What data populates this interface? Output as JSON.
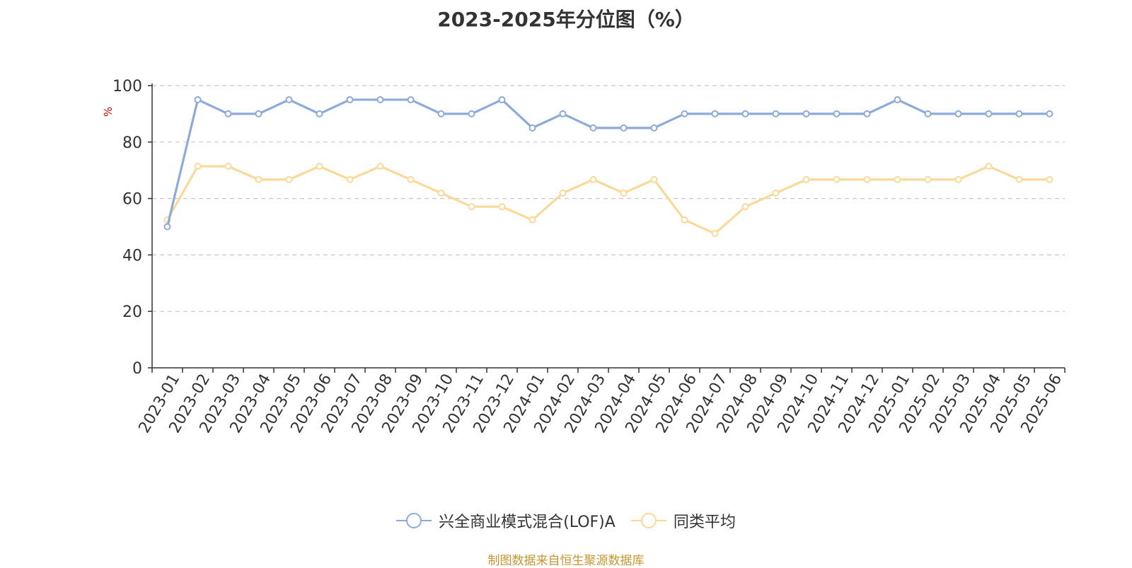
{
  "chart_data": {
    "type": "line",
    "title": "2023-2025年分位图（%）",
    "ylabel": "%",
    "xlabel": "",
    "ylim": [
      0,
      100
    ],
    "yticks": [
      0,
      20,
      40,
      60,
      80,
      100
    ],
    "grid": true,
    "legend_position": "bottom",
    "categories": [
      "2023-01",
      "2023-02",
      "2023-03",
      "2023-04",
      "2023-05",
      "2023-06",
      "2023-07",
      "2023-08",
      "2023-09",
      "2023-10",
      "2023-11",
      "2023-12",
      "2024-01",
      "2024-02",
      "2024-03",
      "2024-04",
      "2024-05",
      "2024-06",
      "2024-07",
      "2024-08",
      "2024-09",
      "2024-10",
      "2024-11",
      "2024-12",
      "2025-01",
      "2025-02",
      "2025-03",
      "2025-04",
      "2025-05",
      "2025-06"
    ],
    "series": [
      {
        "name": "兴全商业模式混合(LOF)A",
        "color": "#8eaadb",
        "values": [
          50,
          95,
          90,
          90,
          95,
          90,
          95,
          95,
          95,
          90,
          90,
          95,
          85,
          90,
          85,
          85,
          85,
          90,
          90,
          90,
          90,
          90,
          90,
          90,
          95,
          90,
          90,
          90,
          90,
          90
        ]
      },
      {
        "name": "同类平均",
        "color": "#fbd999",
        "values": [
          52.4,
          71.4,
          71.4,
          66.7,
          66.7,
          71.4,
          66.7,
          71.4,
          66.7,
          61.9,
          57.1,
          57.1,
          52.4,
          61.9,
          66.7,
          61.9,
          66.7,
          52.4,
          47.6,
          57.1,
          61.9,
          66.7,
          66.7,
          66.7,
          66.7,
          66.7,
          66.7,
          71.4,
          66.7,
          66.7
        ]
      }
    ]
  },
  "source_note": "制图数据来自恒生聚源数据库"
}
